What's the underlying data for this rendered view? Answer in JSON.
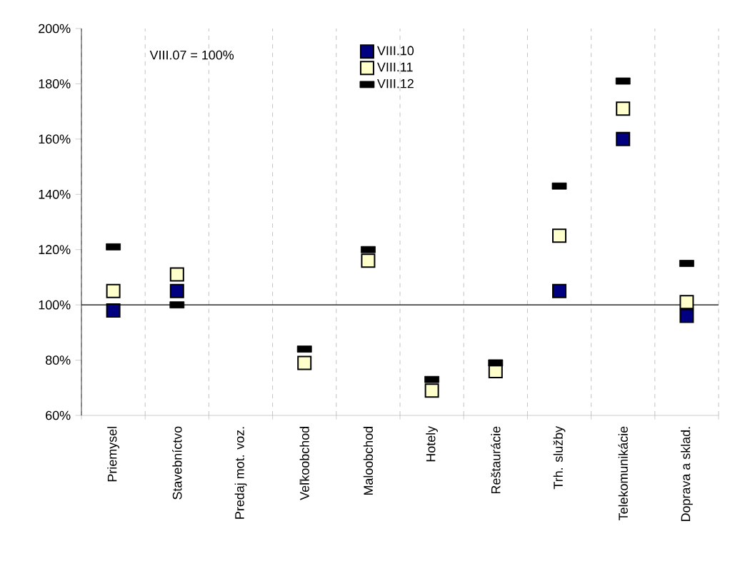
{
  "chart_data": {
    "type": "scatter",
    "categories": [
      "Priemysel",
      "Stavebníctvo",
      "Predaj mot. voz.",
      "Veľkoobchod",
      "Maloobchod",
      "Hotely",
      "Reštaurácie",
      "Trh. služby",
      "Telekomunikácie",
      "Doprava a sklad."
    ],
    "series": [
      {
        "name": "VIII.10",
        "color": "#000080",
        "marker": "square",
        "values": [
          98,
          105,
          null,
          null,
          null,
          null,
          null,
          105,
          160,
          96
        ]
      },
      {
        "name": "VIII.11",
        "color": "#ffffcc",
        "marker": "square",
        "values": [
          105,
          111,
          null,
          79,
          116,
          69,
          76,
          125,
          171,
          101
        ]
      },
      {
        "name": "VIII.12",
        "color": "#000000",
        "marker": "square",
        "values": [
          121,
          100,
          null,
          84,
          120,
          73,
          79,
          143,
          181,
          115
        ]
      }
    ],
    "annotations": [
      "VIII.07 = 100%"
    ],
    "ylim": [
      60,
      200
    ],
    "yticks": [
      {
        "value": 60,
        "label": "60%"
      },
      {
        "value": 80,
        "label": "80%"
      },
      {
        "value": 100,
        "label": "100%"
      },
      {
        "value": 120,
        "label": "120%"
      },
      {
        "value": 140,
        "label": "140%"
      },
      {
        "value": 160,
        "label": "160%"
      },
      {
        "value": 180,
        "label": "180%"
      },
      {
        "value": 200,
        "label": "200%"
      }
    ],
    "ref_lines": [
      {
        "axis": "y",
        "value": 100,
        "color": "#000000"
      }
    ],
    "grid": "x",
    "legend": "top"
  }
}
